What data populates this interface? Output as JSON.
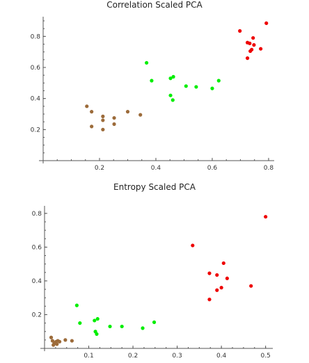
{
  "chart_data": [
    {
      "type": "scatter",
      "title": "Correlation Scaled PCA",
      "xlim": [
        0.0,
        0.81
      ],
      "ylim": [
        0.0,
        0.9
      ],
      "xticks": [
        "0.2",
        "0.4",
        "0.6",
        "0.8"
      ],
      "xtick_values": [
        0.2,
        0.4,
        0.6,
        0.8
      ],
      "yticks": [
        "0.2",
        "0.4",
        "0.6",
        "0.8"
      ],
      "ytick_values": [
        0.2,
        0.4,
        0.6,
        0.8
      ],
      "series": [
        {
          "color": "#9c6b3a",
          "points": [
            [
              0.155,
              0.35
            ],
            [
              0.172,
              0.315
            ],
            [
              0.172,
              0.22
            ],
            [
              0.212,
              0.285
            ],
            [
              0.212,
              0.26
            ],
            [
              0.212,
              0.2
            ],
            [
              0.252,
              0.275
            ],
            [
              0.252,
              0.235
            ],
            [
              0.3,
              0.315
            ],
            [
              0.345,
              0.295
            ]
          ]
        },
        {
          "color": "#00ee00",
          "points": [
            [
              0.367,
              0.63
            ],
            [
              0.385,
              0.515
            ],
            [
              0.452,
              0.53
            ],
            [
              0.462,
              0.54
            ],
            [
              0.452,
              0.42
            ],
            [
              0.46,
              0.39
            ],
            [
              0.507,
              0.48
            ],
            [
              0.543,
              0.475
            ],
            [
              0.6,
              0.465
            ],
            [
              0.623,
              0.515
            ]
          ]
        },
        {
          "color": "#ee0000",
          "points": [
            [
              0.698,
              0.835
            ],
            [
              0.792,
              0.885
            ],
            [
              0.725,
              0.76
            ],
            [
              0.733,
              0.755
            ],
            [
              0.745,
              0.79
            ],
            [
              0.748,
              0.745
            ],
            [
              0.74,
              0.715
            ],
            [
              0.735,
              0.705
            ],
            [
              0.772,
              0.72
            ],
            [
              0.725,
              0.66
            ]
          ]
        }
      ]
    },
    {
      "type": "scatter",
      "title": "Entropy Scaled PCA",
      "xlim": [
        0.0,
        0.51
      ],
      "ylim": [
        0.0,
        0.82
      ],
      "xticks": [
        "0.1",
        "0.2",
        "0.3",
        "0.4",
        "0.5"
      ],
      "xtick_values": [
        0.1,
        0.2,
        0.3,
        0.4,
        0.5
      ],
      "yticks": [
        "0.2",
        "0.4",
        "0.6",
        "0.8"
      ],
      "ytick_values": [
        0.2,
        0.4,
        0.6,
        0.8
      ],
      "series": [
        {
          "color": "#9c6b3a",
          "points": [
            [
              0.015,
              0.065
            ],
            [
              0.018,
              0.045
            ],
            [
              0.022,
              0.03
            ],
            [
              0.026,
              0.04
            ],
            [
              0.03,
              0.045
            ],
            [
              0.034,
              0.04
            ],
            [
              0.028,
              0.025
            ],
            [
              0.047,
              0.05
            ],
            [
              0.062,
              0.045
            ],
            [
              0.02,
              0.02
            ]
          ]
        },
        {
          "color": "#00ee00",
          "points": [
            [
              0.073,
              0.255
            ],
            [
              0.08,
              0.15
            ],
            [
              0.113,
              0.165
            ],
            [
              0.12,
              0.175
            ],
            [
              0.115,
              0.1
            ],
            [
              0.118,
              0.085
            ],
            [
              0.148,
              0.13
            ],
            [
              0.175,
              0.13
            ],
            [
              0.222,
              0.12
            ],
            [
              0.248,
              0.155
            ]
          ]
        },
        {
          "color": "#ee0000",
          "points": [
            [
              0.335,
              0.61
            ],
            [
              0.5,
              0.78
            ],
            [
              0.373,
              0.445
            ],
            [
              0.39,
              0.435
            ],
            [
              0.405,
              0.505
            ],
            [
              0.413,
              0.415
            ],
            [
              0.373,
              0.29
            ],
            [
              0.39,
              0.345
            ],
            [
              0.4,
              0.36
            ],
            [
              0.467,
              0.37
            ]
          ]
        }
      ]
    }
  ]
}
